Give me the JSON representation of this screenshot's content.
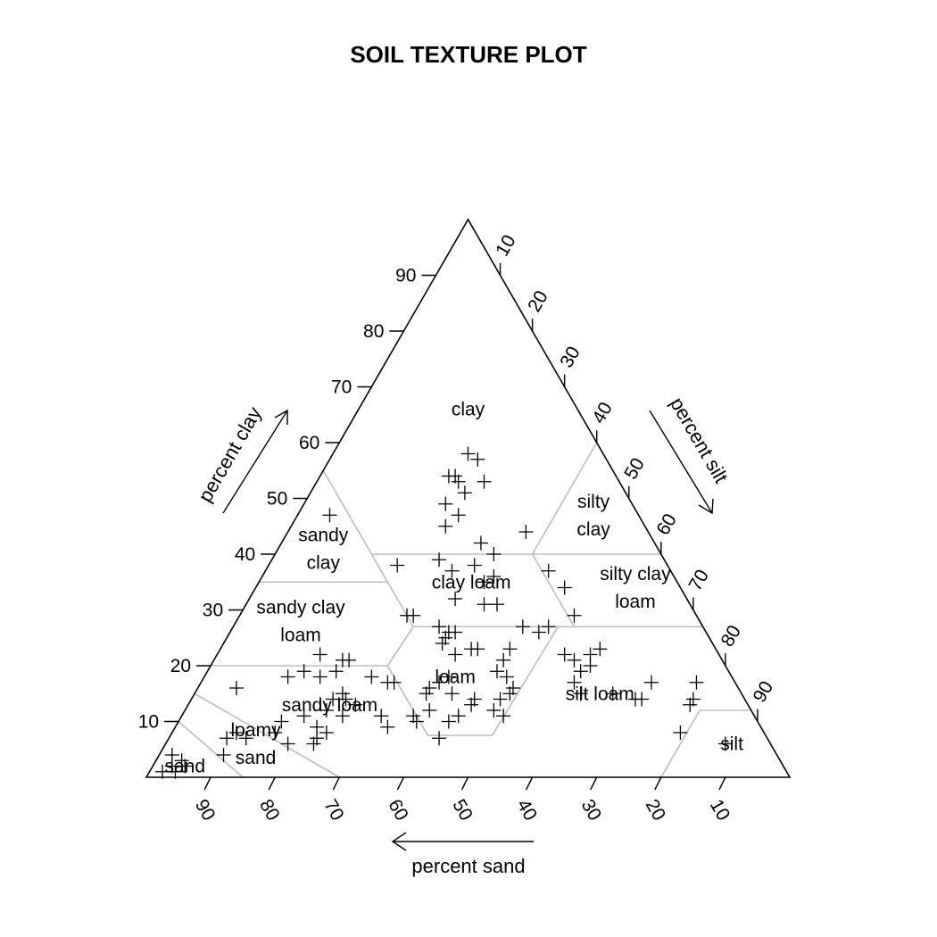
{
  "chart_data": {
    "type": "scatter",
    "subtype": "ternary",
    "title": "SOIL TEXTURE PLOT",
    "axes": {
      "clay": {
        "label": "percent clay",
        "ticks": [
          10,
          20,
          30,
          40,
          50,
          60,
          70,
          80,
          90
        ],
        "range": [
          0,
          100
        ]
      },
      "silt": {
        "label": "percent silt",
        "ticks": [
          10,
          20,
          30,
          40,
          50,
          60,
          70,
          80,
          90
        ],
        "range": [
          0,
          100
        ]
      },
      "sand": {
        "label": "percent sand",
        "ticks": [
          10,
          20,
          30,
          40,
          50,
          60,
          70,
          80,
          90
        ],
        "range": [
          0,
          100
        ]
      }
    },
    "regions": [
      {
        "name": "clay",
        "label_lines": [
          "clay"
        ],
        "label_at": {
          "clay": 66,
          "sand": 17
        }
      },
      {
        "name": "silty clay",
        "label_lines": [
          "silty",
          "clay"
        ],
        "label_at": {
          "clay": 47,
          "sand": 7
        }
      },
      {
        "name": "sandy clay",
        "label_lines": [
          "sandy",
          "clay"
        ],
        "label_at": {
          "clay": 41,
          "sand": 52
        }
      },
      {
        "name": "clay loam",
        "label_lines": [
          "clay loam"
        ],
        "label_at": {
          "clay": 35,
          "sand": 32
        }
      },
      {
        "name": "silty clay loam",
        "label_lines": [
          "silty clay",
          "loam"
        ],
        "label_at": {
          "clay": 34,
          "sand": 7
        }
      },
      {
        "name": "sandy clay loam",
        "label_lines": [
          "sandy clay",
          "loam"
        ],
        "label_at": {
          "clay": 28,
          "sand": 62
        }
      },
      {
        "name": "loam",
        "label_lines": [
          "loam"
        ],
        "label_at": {
          "clay": 18,
          "sand": 43
        }
      },
      {
        "name": "silt loam",
        "label_lines": [
          "silt loam"
        ],
        "label_at": {
          "clay": 15,
          "sand": 22
        }
      },
      {
        "name": "sandy loam",
        "label_lines": [
          "sandy loam"
        ],
        "label_at": {
          "clay": 13,
          "sand": 65
        }
      },
      {
        "name": "loamy sand",
        "label_lines": [
          "loamy",
          "sand"
        ],
        "label_at": {
          "clay": 6,
          "sand": 80
        }
      },
      {
        "name": "sand",
        "label_lines": [
          "sand"
        ],
        "label_at": {
          "clay": 2,
          "sand": 93
        }
      },
      {
        "name": "silt",
        "label_lines": [
          "silt"
        ],
        "label_at": {
          "clay": 6,
          "sand": 6
        }
      }
    ],
    "points": [
      {
        "clay": 47,
        "sand": 48
      },
      {
        "clay": 38,
        "sand": 42
      },
      {
        "clay": 29,
        "sand": 44
      },
      {
        "clay": 29,
        "sand": 45
      },
      {
        "clay": 27,
        "sand": 41
      },
      {
        "clay": 26,
        "sand": 40
      },
      {
        "clay": 26,
        "sand": 39
      },
      {
        "clay": 22,
        "sand": 41
      },
      {
        "clay": 23,
        "sand": 37
      },
      {
        "clay": 22,
        "sand": 62
      },
      {
        "clay": 21,
        "sand": 58
      },
      {
        "clay": 21,
        "sand": 59
      },
      {
        "clay": 19,
        "sand": 66
      },
      {
        "clay": 18,
        "sand": 69
      },
      {
        "clay": 18,
        "sand": 64
      },
      {
        "clay": 19,
        "sand": 61
      },
      {
        "clay": 18,
        "sand": 56
      },
      {
        "clay": 17,
        "sand": 54
      },
      {
        "clay": 17,
        "sand": 53
      },
      {
        "clay": 16,
        "sand": 78
      },
      {
        "clay": 15,
        "sand": 62
      },
      {
        "clay": 14,
        "sand": 64
      },
      {
        "clay": 14,
        "sand": 62
      },
      {
        "clay": 13,
        "sand": 61
      },
      {
        "clay": 12,
        "sand": 66
      },
      {
        "clay": 11,
        "sand": 64
      },
      {
        "clay": 11,
        "sand": 70
      },
      {
        "clay": 10,
        "sand": 74
      },
      {
        "clay": 9,
        "sand": 69
      },
      {
        "clay": 8,
        "sand": 68
      },
      {
        "clay": 8,
        "sand": 82
      },
      {
        "clay": 7,
        "sand": 70
      },
      {
        "clay": 7,
        "sand": 81
      },
      {
        "clay": 6,
        "sand": 71
      },
      {
        "clay": 8,
        "sand": 76
      },
      {
        "clay": 7,
        "sand": 84
      },
      {
        "clay": 6,
        "sand": 75
      },
      {
        "clay": 4,
        "sand": 86
      },
      {
        "clay": 4,
        "sand": 94
      },
      {
        "clay": 3,
        "sand": 93
      },
      {
        "clay": 2,
        "sand": 93
      },
      {
        "clay": 2,
        "sand": 95
      },
      {
        "clay": 1,
        "sand": 97
      },
      {
        "clay": 1,
        "sand": 95
      },
      {
        "clay": 11,
        "sand": 58
      },
      {
        "clay": 9,
        "sand": 58
      },
      {
        "clay": 11,
        "sand": 53
      },
      {
        "clay": 10,
        "sand": 53
      },
      {
        "clay": 7,
        "sand": 51
      },
      {
        "clay": 12,
        "sand": 50
      },
      {
        "clay": 10,
        "sand": 48
      },
      {
        "clay": 11,
        "sand": 46
      },
      {
        "clay": 15,
        "sand": 49
      },
      {
        "clay": 16,
        "sand": 48
      },
      {
        "clay": 17,
        "sand": 46
      },
      {
        "clay": 18,
        "sand": 44
      },
      {
        "clay": 15,
        "sand": 45
      },
      {
        "clay": 13,
        "sand": 43
      },
      {
        "clay": 14,
        "sand": 42
      },
      {
        "clay": 12,
        "sand": 40
      },
      {
        "clay": 11,
        "sand": 39
      },
      {
        "clay": 14,
        "sand": 38
      },
      {
        "clay": 15,
        "sand": 36
      },
      {
        "clay": 16,
        "sand": 35
      },
      {
        "clay": 18,
        "sand": 35
      },
      {
        "clay": 19,
        "sand": 36
      },
      {
        "clay": 21,
        "sand": 34
      },
      {
        "clay": 23,
        "sand": 38
      },
      {
        "clay": 24,
        "sand": 42
      },
      {
        "clay": 25,
        "sand": 41
      },
      {
        "clay": 23,
        "sand": 32
      },
      {
        "clay": 27,
        "sand": 28
      },
      {
        "clay": 26,
        "sand": 26
      },
      {
        "clay": 22,
        "sand": 24
      },
      {
        "clay": 21,
        "sand": 23
      },
      {
        "clay": 19,
        "sand": 23
      },
      {
        "clay": 17,
        "sand": 25
      },
      {
        "clay": 15,
        "sand": 25
      },
      {
        "clay": 15,
        "sand": 20
      },
      {
        "clay": 14,
        "sand": 17
      },
      {
        "clay": 14,
        "sand": 16
      },
      {
        "clay": 17,
        "sand": 13
      },
      {
        "clay": 13,
        "sand": 9
      },
      {
        "clay": 14,
        "sand": 8
      },
      {
        "clay": 17,
        "sand": 6
      },
      {
        "clay": 8,
        "sand": 13
      },
      {
        "clay": 31,
        "sand": 30
      },
      {
        "clay": 31,
        "sand": 32
      },
      {
        "clay": 32,
        "sand": 36
      },
      {
        "clay": 35,
        "sand": 30
      },
      {
        "clay": 38,
        "sand": 30
      },
      {
        "clay": 39,
        "sand": 35
      },
      {
        "clay": 37,
        "sand": 34
      },
      {
        "clay": 36,
        "sand": 28
      },
      {
        "clay": 40,
        "sand": 26
      },
      {
        "clay": 42,
        "sand": 27
      },
      {
        "clay": 45,
        "sand": 31
      },
      {
        "clay": 47,
        "sand": 28
      },
      {
        "clay": 49,
        "sand": 29
      },
      {
        "clay": 51,
        "sand": 25
      },
      {
        "clay": 53,
        "sand": 25
      },
      {
        "clay": 54,
        "sand": 26
      },
      {
        "clay": 54,
        "sand": 25
      },
      {
        "clay": 53,
        "sand": 21
      },
      {
        "clay": 58,
        "sand": 21
      },
      {
        "clay": 57,
        "sand": 20
      },
      {
        "clay": 44,
        "sand": 19
      },
      {
        "clay": 37,
        "sand": 19
      },
      {
        "clay": 34,
        "sand": 18
      },
      {
        "clay": 29,
        "sand": 19
      },
      {
        "clay": 27,
        "sand": 24
      },
      {
        "clay": 22,
        "sand": 20
      },
      {
        "clay": 23,
        "sand": 18
      },
      {
        "clay": 20,
        "sand": 21
      },
      {
        "clay": 6,
        "sand": 7
      }
    ]
  }
}
